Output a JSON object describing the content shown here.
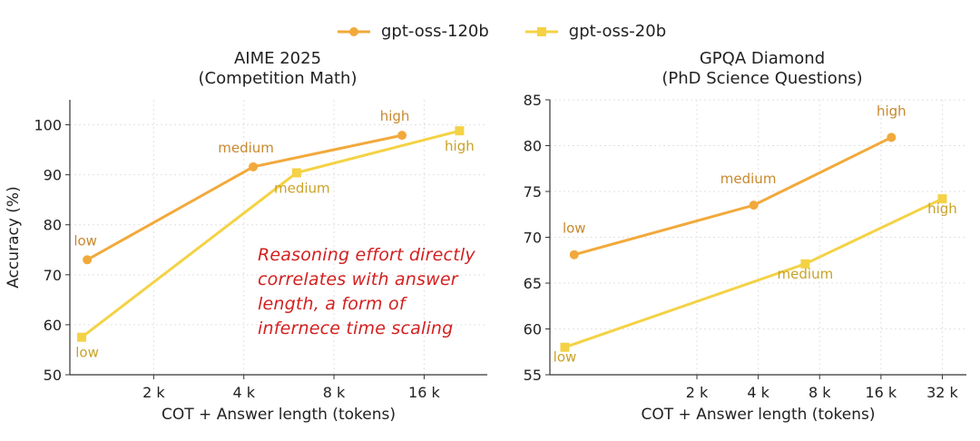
{
  "colors": {
    "series_120b": "#f2a93b",
    "series_20b": "#f4d245",
    "label_120b": "#c8892e",
    "label_20b": "#c9a227",
    "annotation": "#d42020"
  },
  "legend": {
    "items": [
      {
        "name": "gpt-oss-120b",
        "marker": "circle"
      },
      {
        "name": "gpt-oss-20b",
        "marker": "square"
      }
    ]
  },
  "annotation": {
    "lines": [
      "Reasoning effort directly",
      "correlates with answer",
      "length, a form of",
      "infernece time scaling"
    ]
  },
  "chart_data": [
    {
      "type": "line",
      "title": "AIME 2025",
      "subtitle": "(Competition Math)",
      "xlabel": "COT + Answer length (tokens)",
      "ylabel": "Accuracy (%)",
      "x_scale": "log2",
      "x_ticks": [
        {
          "value": 2000,
          "label": "2 k"
        },
        {
          "value": 4000,
          "label": "4 k"
        },
        {
          "value": 8000,
          "label": "8 k"
        },
        {
          "value": 16000,
          "label": "16 k"
        }
      ],
      "xlim": [
        1050,
        26000
      ],
      "y_ticks": [
        50,
        60,
        70,
        80,
        90,
        100
      ],
      "ylim": [
        50,
        105
      ],
      "grid": true,
      "series": [
        {
          "name": "gpt-oss-120b",
          "x": [
            1200,
            4300,
            13500
          ],
          "y": [
            73,
            91.6,
            97.9
          ],
          "labels": [
            "low",
            "medium",
            "high"
          ]
        },
        {
          "name": "gpt-oss-20b",
          "x": [
            1150,
            6000,
            21000
          ],
          "y": [
            57.5,
            90.4,
            98.8
          ],
          "labels": [
            "low",
            "medium",
            "high"
          ]
        }
      ]
    },
    {
      "type": "line",
      "title": "GPQA Diamond",
      "subtitle": "(PhD Science Questions)",
      "xlabel": "COT + Answer length (tokens)",
      "ylabel": "",
      "x_scale": "log2",
      "x_ticks": [
        {
          "value": 2000,
          "label": "2 k"
        },
        {
          "value": 4000,
          "label": "4 k"
        },
        {
          "value": 8000,
          "label": "8 k"
        },
        {
          "value": 16000,
          "label": "16 k"
        },
        {
          "value": 32000,
          "label": "32 k"
        }
      ],
      "xlim": [
        380,
        42000
      ],
      "y_ticks": [
        55,
        60,
        65,
        70,
        75,
        80,
        85
      ],
      "ylim": [
        55,
        85
      ],
      "grid": true,
      "series": [
        {
          "name": "gpt-oss-120b",
          "x": [
            500,
            3800,
            18000
          ],
          "y": [
            68.1,
            73.5,
            80.9
          ],
          "labels": [
            "low",
            "medium",
            "high"
          ]
        },
        {
          "name": "gpt-oss-20b",
          "x": [
            450,
            6800,
            32000
          ],
          "y": [
            58.0,
            67.1,
            74.2
          ],
          "labels": [
            "low",
            "medium",
            "high"
          ]
        }
      ]
    }
  ]
}
